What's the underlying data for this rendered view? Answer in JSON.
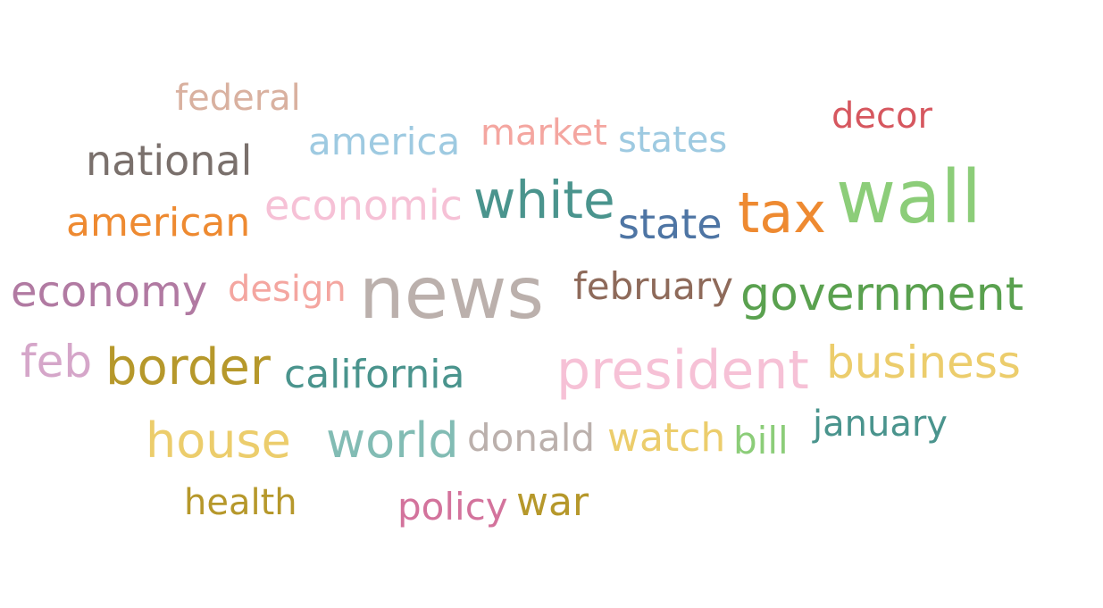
{
  "word_cloud": {
    "words": [
      {
        "text": "federal",
        "color": "#d9b1a0"
      },
      {
        "text": "national",
        "color": "#7a706c"
      },
      {
        "text": "america",
        "color": "#9ecae1"
      },
      {
        "text": "market",
        "color": "#f4a6a0"
      },
      {
        "text": "states",
        "color": "#9ecae1"
      },
      {
        "text": "decor",
        "color": "#d6575f"
      },
      {
        "text": "american",
        "color": "#ee8a31"
      },
      {
        "text": "economic",
        "color": "#f6c1d6"
      },
      {
        "text": "white",
        "color": "#4a948d"
      },
      {
        "text": "state",
        "color": "#4e75a4"
      },
      {
        "text": "tax",
        "color": "#ee8a31"
      },
      {
        "text": "wall",
        "color": "#8ccd79"
      },
      {
        "text": "economy",
        "color": "#b17aa2"
      },
      {
        "text": "design",
        "color": "#f4a6a0"
      },
      {
        "text": "news",
        "color": "#bbb0ac"
      },
      {
        "text": "february",
        "color": "#8e6a5a"
      },
      {
        "text": "government",
        "color": "#5aa14f"
      },
      {
        "text": "feb",
        "color": "#d5a6c9"
      },
      {
        "text": "border",
        "color": "#b6982b"
      },
      {
        "text": "california",
        "color": "#4a948d"
      },
      {
        "text": "president",
        "color": "#f6c1d6"
      },
      {
        "text": "business",
        "color": "#eccd6c"
      },
      {
        "text": "house",
        "color": "#eccd6c"
      },
      {
        "text": "world",
        "color": "#82bcb4"
      },
      {
        "text": "donald",
        "color": "#bbb0ac"
      },
      {
        "text": "watch",
        "color": "#eccd6c"
      },
      {
        "text": "bill",
        "color": "#8ccd79"
      },
      {
        "text": "january",
        "color": "#4a948d"
      },
      {
        "text": "health",
        "color": "#b6982b"
      },
      {
        "text": "policy",
        "color": "#d3739c"
      },
      {
        "text": "war",
        "color": "#b6982b"
      }
    ]
  }
}
